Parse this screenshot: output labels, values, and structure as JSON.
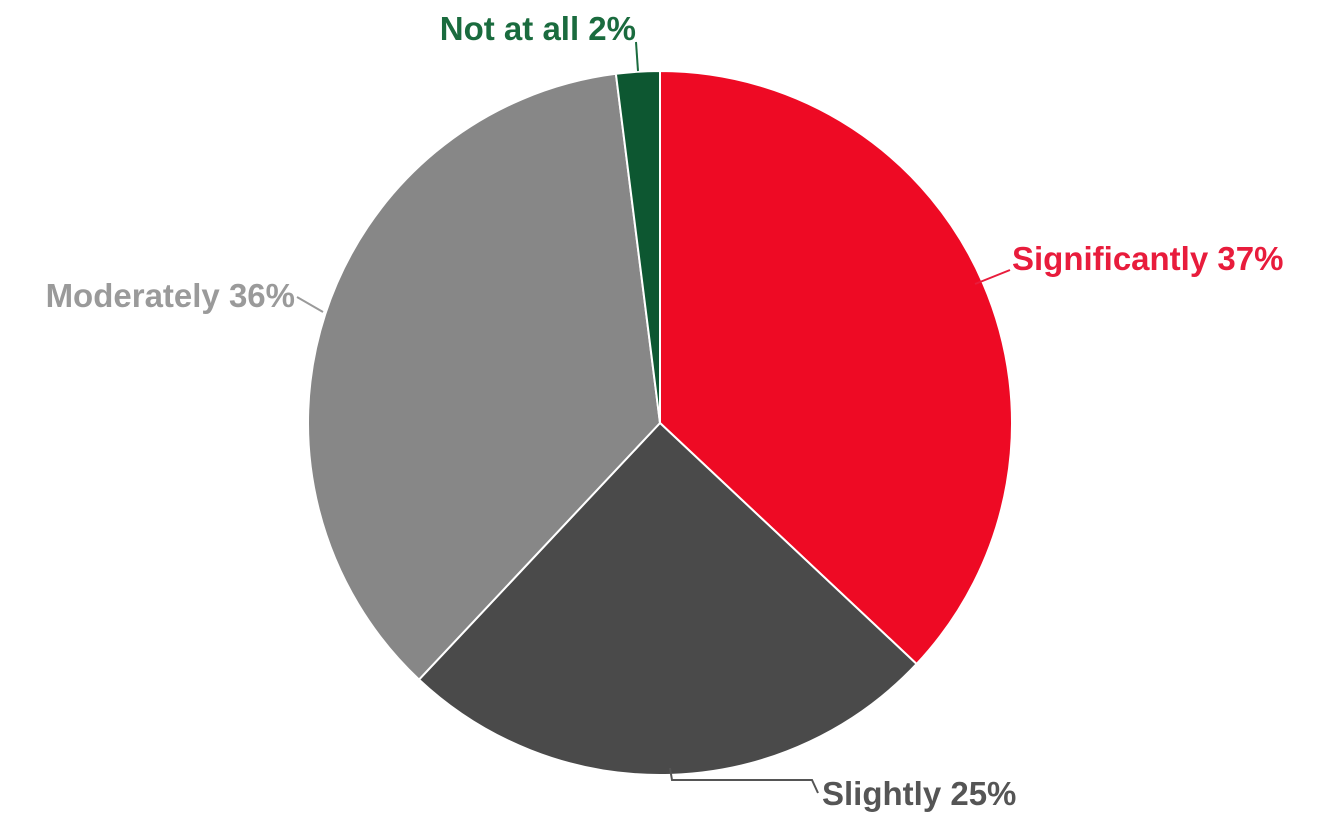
{
  "chart_data": {
    "type": "pie",
    "start": "top",
    "direction": "clockwise",
    "slices": [
      {
        "label": "Significantly",
        "value": 37,
        "display": "Significantly 37%",
        "color": "#ee0a24",
        "label_color": "#e81c3c"
      },
      {
        "label": "Slightly",
        "value": 25,
        "display": "Slightly 25%",
        "color": "#4a4a4a",
        "label_color": "#555555"
      },
      {
        "label": "Moderately",
        "value": 36,
        "display": "Moderately 36%",
        "color": "#878787",
        "label_color": "#9a9a9a"
      },
      {
        "label": "Not at all",
        "value": 2,
        "display": "Not at all 2%",
        "color": "#0d5731",
        "label_color": "#1a6b3e"
      }
    ]
  }
}
